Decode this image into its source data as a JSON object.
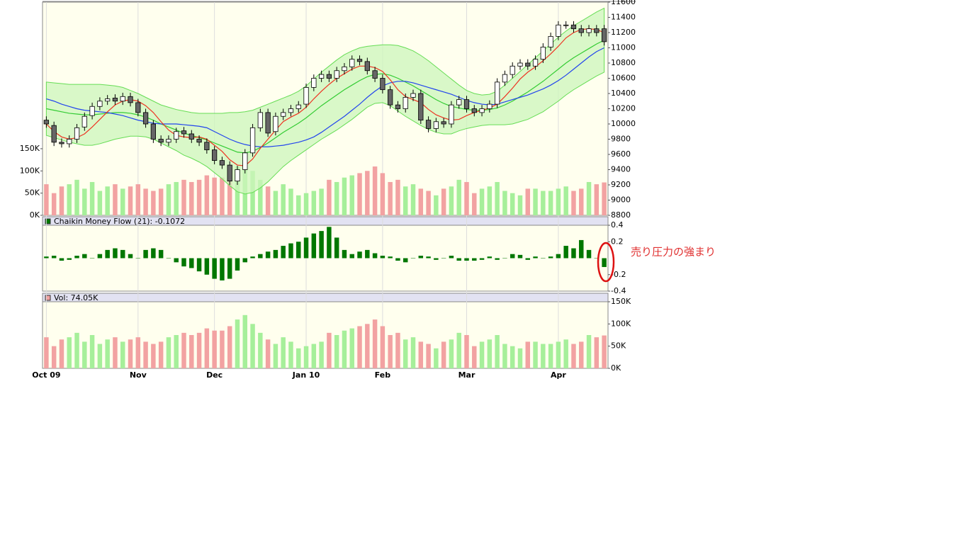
{
  "chart_data": [
    {
      "type": "candlestick",
      "categories": [
        "Oct 09",
        null,
        null,
        null,
        null,
        null,
        null,
        null,
        null,
        null,
        null,
        null,
        "Nov",
        null,
        null,
        null,
        null,
        null,
        null,
        null,
        null,
        null,
        "Dec",
        null,
        null,
        null,
        null,
        null,
        null,
        null,
        null,
        null,
        null,
        null,
        "Jan 10",
        null,
        null,
        null,
        null,
        null,
        null,
        null,
        null,
        null,
        "Feb",
        null,
        null,
        null,
        null,
        null,
        null,
        null,
        null,
        null,
        null,
        "Mar",
        null,
        null,
        null,
        null,
        null,
        null,
        null,
        null,
        null,
        null,
        null,
        "Apr",
        null,
        null,
        null,
        null,
        null,
        null
      ],
      "open": [
        10050,
        9980,
        9760,
        9740,
        9800,
        9960,
        10110,
        10230,
        10300,
        10340,
        10300,
        10360,
        10280,
        10150,
        10000,
        9800,
        9760,
        9800,
        9910,
        9870,
        9800,
        9760,
        9660,
        9520,
        9460,
        9250,
        9400,
        9620,
        9950,
        10150,
        9900,
        10100,
        10150,
        10200,
        10260,
        10480,
        10600,
        10650,
        10600,
        10700,
        10750,
        10850,
        10820,
        10700,
        10600,
        10450,
        10250,
        10200,
        10350,
        10400,
        10050,
        9940,
        10030,
        10000,
        10250,
        10320,
        10200,
        10150,
        10200,
        10260,
        10550,
        10650,
        10760,
        10800,
        10760,
        10850,
        11010,
        11150,
        11300,
        11300,
        11250,
        11200,
        11250,
        11250
      ],
      "high": [
        10100,
        10030,
        9810,
        9850,
        10000,
        10150,
        10280,
        10350,
        10380,
        10390,
        10410,
        10410,
        10330,
        10200,
        10050,
        9850,
        9850,
        9950,
        9960,
        9920,
        9850,
        9810,
        9710,
        9570,
        9510,
        9450,
        9670,
        10000,
        10200,
        10200,
        10150,
        10200,
        10250,
        10300,
        10530,
        10650,
        10700,
        10700,
        10750,
        10800,
        10900,
        10900,
        10870,
        10750,
        10650,
        10500,
        10300,
        10400,
        10450,
        10450,
        10100,
        10080,
        10080,
        10300,
        10370,
        10370,
        10250,
        10250,
        10310,
        10600,
        10700,
        10810,
        10850,
        10850,
        10900,
        11060,
        11200,
        11350,
        11350,
        11350,
        11300,
        11300,
        11300,
        11300
      ],
      "low": [
        9950,
        9710,
        9690,
        9690,
        9750,
        9910,
        10060,
        10180,
        10250,
        10250,
        10250,
        10230,
        10100,
        9950,
        9750,
        9710,
        9710,
        9750,
        9820,
        9750,
        9710,
        9610,
        9470,
        9410,
        9200,
        9200,
        9350,
        9570,
        9900,
        9830,
        9850,
        10050,
        10100,
        10150,
        10210,
        10430,
        10550,
        10550,
        10550,
        10650,
        10700,
        10770,
        10650,
        10550,
        10400,
        10200,
        10150,
        10150,
        10300,
        10000,
        9890,
        9890,
        9950,
        9950,
        10200,
        10150,
        10100,
        10100,
        10150,
        10210,
        10500,
        10600,
        10710,
        10710,
        10710,
        10800,
        10960,
        11100,
        11250,
        11200,
        11150,
        11150,
        11150,
        11030
      ],
      "close": [
        10000,
        9760,
        9740,
        9800,
        9950,
        10100,
        10230,
        10300,
        10330,
        10300,
        10360,
        10280,
        10150,
        10000,
        9800,
        9760,
        9800,
        9900,
        9870,
        9800,
        9760,
        9660,
        9520,
        9460,
        9250,
        9400,
        9620,
        9950,
        10150,
        9880,
        10100,
        10150,
        10200,
        10250,
        10480,
        10600,
        10650,
        10600,
        10700,
        10750,
        10850,
        10820,
        10700,
        10600,
        10450,
        10250,
        10200,
        10350,
        10400,
        10050,
        9940,
        10030,
        10000,
        10250,
        10320,
        10200,
        10150,
        10200,
        10260,
        10550,
        10650,
        10760,
        10800,
        10760,
        10850,
        11010,
        11150,
        11300,
        11300,
        11250,
        11200,
        11250,
        11200,
        11080
      ],
      "up_color": "#ffffff",
      "down_color": "#666666",
      "bands": {
        "color": "#66dd55",
        "fill": "#ccf5bb",
        "upper": [
          10550,
          10540,
          10530,
          10520,
          10520,
          10520,
          10520,
          10520,
          10510,
          10500,
          10480,
          10440,
          10400,
          10350,
          10300,
          10250,
          10220,
          10190,
          10170,
          10150,
          10140,
          10140,
          10140,
          10140,
          10150,
          10150,
          10160,
          10180,
          10220,
          10260,
          10300,
          10340,
          10380,
          10430,
          10500,
          10590,
          10680,
          10760,
          10840,
          10910,
          10960,
          11000,
          11020,
          11030,
          11040,
          11040,
          11030,
          11000,
          10960,
          10900,
          10830,
          10750,
          10670,
          10590,
          10510,
          10440,
          10400,
          10380,
          10390,
          10430,
          10510,
          10600,
          10690,
          10780,
          10870,
          10960,
          11050,
          11140,
          11220,
          11290,
          11350,
          11410,
          11470,
          11520
        ],
        "lower": [
          9850,
          9820,
          9790,
          9760,
          9740,
          9720,
          9720,
          9740,
          9770,
          9800,
          9820,
          9840,
          9840,
          9830,
          9800,
          9750,
          9700,
          9650,
          9590,
          9550,
          9500,
          9440,
          9360,
          9280,
          9190,
          9110,
          9080,
          9100,
          9160,
          9240,
          9340,
          9440,
          9520,
          9590,
          9660,
          9730,
          9800,
          9860,
          9920,
          9990,
          10060,
          10140,
          10220,
          10270,
          10280,
          10240,
          10170,
          10100,
          10040,
          9980,
          9930,
          9890,
          9870,
          9870,
          9910,
          9940,
          9960,
          9980,
          9990,
          9990,
          9990,
          10000,
          10030,
          10060,
          10110,
          10160,
          10230,
          10300,
          10380,
          10450,
          10510,
          10570,
          10630,
          10680
        ]
      },
      "lines": [
        {
          "color": "#33cc33",
          "values": [
            10200,
            10180,
            10160,
            10140,
            10130,
            10120,
            10120,
            10130,
            10140,
            10150,
            10150,
            10140,
            10120,
            10090,
            10050,
            10000,
            9960,
            9920,
            9880,
            9850,
            9820,
            9790,
            9750,
            9710,
            9670,
            9630,
            9620,
            9640,
            9690,
            9750,
            9820,
            9890,
            9950,
            10010,
            10080,
            10160,
            10240,
            10310,
            10380,
            10450,
            10510,
            10570,
            10620,
            10650,
            10660,
            10640,
            10600,
            10550,
            10500,
            10440,
            10380,
            10320,
            10270,
            10230,
            10210,
            10190,
            10180,
            10180,
            10190,
            10210,
            10250,
            10300,
            10360,
            10420,
            10490,
            10560,
            10640,
            10720,
            10800,
            10870,
            10930,
            10990,
            11050,
            11100
          ]
        },
        {
          "color": "#2244ee",
          "values": [
            10330,
            10300,
            10260,
            10230,
            10200,
            10180,
            10170,
            10160,
            10150,
            10130,
            10110,
            10080,
            10050,
            10030,
            10010,
            10000,
            10000,
            10000,
            9990,
            9980,
            9970,
            9950,
            9900,
            9850,
            9800,
            9760,
            9730,
            9710,
            9700,
            9700,
            9710,
            9720,
            9740,
            9760,
            9790,
            9830,
            9890,
            9960,
            10030,
            10100,
            10180,
            10260,
            10350,
            10430,
            10500,
            10540,
            10560,
            10560,
            10540,
            10510,
            10480,
            10450,
            10420,
            10390,
            10350,
            10310,
            10280,
            10260,
            10250,
            10260,
            10290,
            10320,
            10350,
            10380,
            10420,
            10460,
            10510,
            10570,
            10640,
            10720,
            10800,
            10880,
            10950,
            11000
          ]
        },
        {
          "color": "#ee3322",
          "values": [
            10000,
            9900,
            9830,
            9800,
            9820,
            9870,
            9960,
            10060,
            10160,
            10250,
            10300,
            10320,
            10300,
            10240,
            10150,
            10030,
            9920,
            9850,
            9830,
            9820,
            9830,
            9800,
            9720,
            9640,
            9530,
            9460,
            9450,
            9540,
            9680,
            9800,
            9920,
            10030,
            10090,
            10140,
            10220,
            10330,
            10430,
            10520,
            10600,
            10660,
            10720,
            10760,
            10760,
            10740,
            10690,
            10580,
            10450,
            10360,
            10320,
            10280,
            10190,
            10120,
            10080,
            10050,
            10060,
            10110,
            10150,
            10180,
            10210,
            10260,
            10360,
            10470,
            10590,
            10680,
            10750,
            10830,
            10920,
            11020,
            11130,
            11200,
            11240,
            11250,
            11240,
            11200
          ]
        }
      ],
      "ylim": [
        8800,
        11600
      ],
      "yticks": [
        8800,
        9000,
        9200,
        9400,
        9600,
        9800,
        10000,
        10200,
        10400,
        10600,
        10800,
        11000,
        11200,
        11400,
        11600
      ],
      "y2lim": [
        0,
        480000
      ],
      "y2ticks": [
        {
          "value": 0,
          "label": "0K"
        },
        {
          "value": 50000,
          "label": "50K"
        },
        {
          "value": 100000,
          "label": "100K"
        },
        {
          "value": 150000,
          "label": "150K"
        }
      ]
    },
    {
      "type": "bar",
      "title": "Chaikin Money Flow (21): -0.1072",
      "color": "#007700",
      "values": [
        0.02,
        0.03,
        -0.03,
        -0.02,
        0.03,
        0.05,
        0.0,
        0.05,
        0.1,
        0.12,
        0.1,
        0.05,
        0.0,
        0.1,
        0.12,
        0.1,
        0.0,
        -0.05,
        -0.1,
        -0.12,
        -0.16,
        -0.2,
        -0.25,
        -0.27,
        -0.25,
        -0.15,
        -0.05,
        0.02,
        0.05,
        0.08,
        0.1,
        0.15,
        0.18,
        0.2,
        0.25,
        0.3,
        0.33,
        0.38,
        0.25,
        0.1,
        0.05,
        0.08,
        0.1,
        0.06,
        0.03,
        0.02,
        -0.03,
        -0.05,
        0.0,
        0.03,
        0.02,
        -0.02,
        0.0,
        0.03,
        -0.03,
        -0.03,
        -0.03,
        -0.02,
        0.02,
        -0.02,
        0.0,
        0.05,
        0.04,
        -0.02,
        0.02,
        0.0,
        0.02,
        0.05,
        0.15,
        0.12,
        0.22,
        0.1,
        0.0,
        -0.1072
      ],
      "ylim": [
        -0.4,
        0.4
      ],
      "yticks": [
        0.4,
        0.2,
        -0.2,
        -0.4
      ],
      "annotation": "売り圧力の強まり"
    },
    {
      "type": "bar",
      "title": "Vol: 74.05K",
      "up_color": "#a6ef9a",
      "down_color": "#f2a2a2",
      "values": [
        70000,
        50000,
        65000,
        70000,
        80000,
        60000,
        75000,
        55000,
        65000,
        70000,
        60000,
        65000,
        70000,
        60000,
        55000,
        60000,
        70000,
        75000,
        80000,
        75000,
        80000,
        90000,
        85000,
        85000,
        95000,
        110000,
        120000,
        100000,
        80000,
        65000,
        55000,
        70000,
        60000,
        45000,
        50000,
        55000,
        60000,
        80000,
        75000,
        85000,
        90000,
        95000,
        100000,
        110000,
        95000,
        75000,
        80000,
        65000,
        70000,
        60000,
        55000,
        45000,
        60000,
        65000,
        80000,
        75000,
        50000,
        60000,
        65000,
        75000,
        55000,
        50000,
        45000,
        60000,
        60000,
        55000,
        55000,
        60000,
        65000,
        55000,
        60000,
        75000,
        70000,
        74050
      ],
      "ylim": [
        0,
        150000
      ],
      "yticks": [
        {
          "value": 0,
          "label": "0K"
        },
        {
          "value": 50000,
          "label": "50K"
        },
        {
          "value": 100000,
          "label": "100K"
        },
        {
          "value": 150000,
          "label": "150K"
        }
      ]
    }
  ]
}
